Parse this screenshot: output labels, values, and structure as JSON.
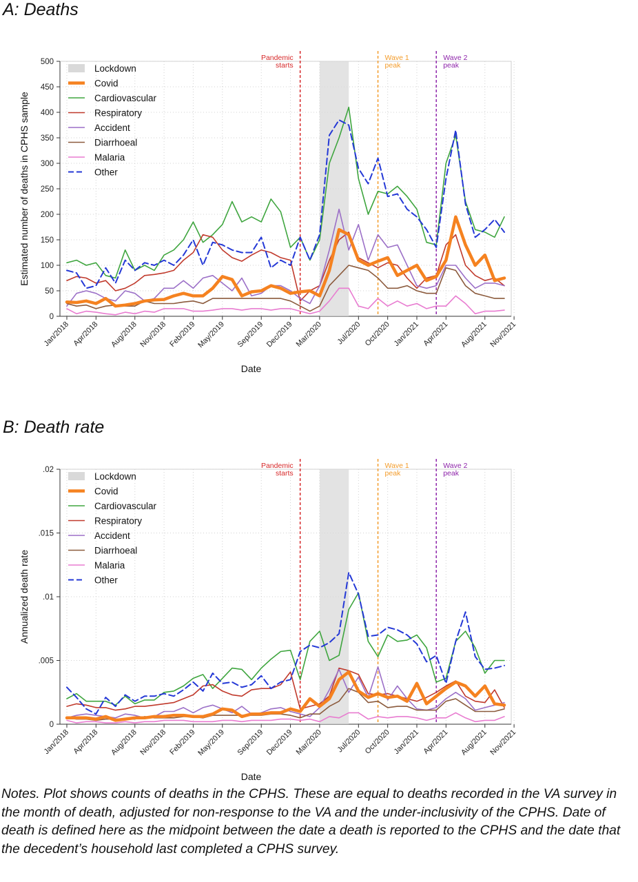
{
  "panels": {
    "a": {
      "title": "A: Deaths"
    },
    "b": {
      "title": "B: Death rate"
    }
  },
  "notes": "Notes.  Plot shows counts of deaths in the CPHS.  These are equal to deaths recorded in the VA survey in the month of death, adjusted for non-response to the VA and the under-inclusivity of the CPHS.  Date of death is defined here as the midpoint between the date a death is reported to the CPHS and the date that the decedent’s household last completed a CPHS survey.",
  "chart_data": [
    {
      "type": "line",
      "id": "a",
      "xlabel": "Date",
      "ylabel": "Estimated number of deaths in CPHS sample",
      "ylim": [
        0,
        500
      ],
      "yticks": [
        0,
        50,
        100,
        150,
        200,
        250,
        300,
        350,
        400,
        450,
        500
      ],
      "ytick_labels": [
        "0",
        "50",
        "100",
        "150",
        "200",
        "250",
        "300",
        "350",
        "400",
        "450",
        "500"
      ],
      "xticks": [
        "Jan/2018",
        "Apr/2018",
        "Aug/2018",
        "Nov/2018",
        "Feb/2019",
        "May/2019",
        "Sep/2019",
        "Dec/2019",
        "Mar/2020",
        "Jul/2020",
        "Oct/2020",
        "Jan/2021",
        "Apr/2021",
        "Aug/2021",
        "Nov/2021"
      ],
      "grid": true,
      "legend_position": "top-left",
      "lockdown": {
        "label": "Lockdown",
        "start": "Mar/2020",
        "end": "Jun/2020"
      },
      "events": [
        {
          "label": "Pandemic starts",
          "lines": [
            "Pandemic",
            "starts"
          ],
          "date": "Jan/2020",
          "color": "#d62728"
        },
        {
          "label": "Wave 1 peak",
          "lines": [
            "Wave 1",
            "peak"
          ],
          "date": "Sep/2020",
          "color": "#f39c2b"
        },
        {
          "label": "Wave 2 peak",
          "lines": [
            "Wave 2",
            "peak"
          ],
          "date": "Mar/2021",
          "color": "#8e24aa"
        }
      ],
      "x": [
        "Jan/2018",
        "Feb/2018",
        "Mar/2018",
        "Apr/2018",
        "May/2018",
        "Jun/2018",
        "Jul/2018",
        "Aug/2018",
        "Sep/2018",
        "Oct/2018",
        "Nov/2018",
        "Dec/2018",
        "Jan/2019",
        "Feb/2019",
        "Mar/2019",
        "Apr/2019",
        "May/2019",
        "Jun/2019",
        "Jul/2019",
        "Aug/2019",
        "Sep/2019",
        "Oct/2019",
        "Nov/2019",
        "Dec/2019",
        "Jan/2020",
        "Feb/2020",
        "Mar/2020",
        "Apr/2020",
        "May/2020",
        "Jun/2020",
        "Jul/2020",
        "Aug/2020",
        "Sep/2020",
        "Oct/2020",
        "Nov/2020",
        "Dec/2020",
        "Jan/2021",
        "Feb/2021",
        "Mar/2021",
        "Apr/2021",
        "May/2021",
        "Jun/2021",
        "Jul/2021",
        "Aug/2021",
        "Sep/2021",
        "Oct/2021"
      ],
      "series": [
        {
          "name": "Covid",
          "color": "#f58220",
          "width": 4.5,
          "dash": false,
          "values": [
            28,
            27,
            30,
            25,
            35,
            20,
            22,
            25,
            30,
            32,
            33,
            40,
            45,
            40,
            40,
            55,
            78,
            72,
            40,
            48,
            50,
            60,
            55,
            45,
            48,
            50,
            40,
            90,
            170,
            160,
            110,
            100,
            108,
            115,
            80,
            90,
            100,
            70,
            78,
            110,
            195,
            140,
            100,
            120,
            70,
            75
          ]
        },
        {
          "name": "Cardiovascular",
          "color": "#3ea53e",
          "width": 1.6,
          "dash": false,
          "values": [
            105,
            110,
            100,
            105,
            80,
            75,
            130,
            90,
            100,
            90,
            120,
            130,
            150,
            185,
            145,
            160,
            180,
            225,
            185,
            195,
            185,
            230,
            205,
            135,
            155,
            110,
            150,
            300,
            350,
            410,
            270,
            200,
            245,
            240,
            255,
            235,
            210,
            145,
            140,
            300,
            355,
            225,
            170,
            165,
            155,
            195
          ]
        },
        {
          "name": "Respiratory",
          "color": "#c0392b",
          "width": 1.6,
          "dash": false,
          "values": [
            70,
            78,
            75,
            65,
            70,
            50,
            55,
            65,
            80,
            82,
            85,
            90,
            110,
            125,
            160,
            155,
            130,
            115,
            108,
            120,
            130,
            125,
            115,
            110,
            30,
            50,
            60,
            110,
            150,
            165,
            115,
            105,
            95,
            105,
            100,
            75,
            55,
            75,
            80,
            140,
            160,
            100,
            80,
            70,
            75,
            60
          ]
        },
        {
          "name": "Accident",
          "color": "#9b6fc7",
          "width": 1.6,
          "dash": false,
          "values": [
            20,
            45,
            50,
            45,
            35,
            30,
            50,
            45,
            30,
            35,
            55,
            55,
            70,
            55,
            75,
            80,
            65,
            50,
            75,
            40,
            45,
            60,
            60,
            50,
            35,
            25,
            60,
            130,
            210,
            130,
            180,
            110,
            160,
            135,
            140,
            100,
            60,
            55,
            60,
            100,
            100,
            75,
            55,
            65,
            65,
            60
          ]
        },
        {
          "name": "Diarrhoeal",
          "color": "#8b5a3c",
          "width": 1.6,
          "dash": false,
          "values": [
            25,
            20,
            22,
            15,
            20,
            22,
            20,
            20,
            30,
            25,
            25,
            25,
            28,
            30,
            25,
            35,
            35,
            35,
            35,
            35,
            35,
            35,
            35,
            30,
            20,
            10,
            20,
            60,
            80,
            100,
            95,
            90,
            75,
            55,
            55,
            60,
            50,
            45,
            45,
            95,
            90,
            60,
            45,
            40,
            35,
            35
          ]
        },
        {
          "name": "Malaria",
          "color": "#e87bd0",
          "width": 1.6,
          "dash": false,
          "values": [
            15,
            5,
            10,
            8,
            5,
            3,
            8,
            5,
            10,
            8,
            15,
            15,
            15,
            10,
            10,
            12,
            15,
            15,
            12,
            15,
            15,
            12,
            15,
            15,
            10,
            5,
            10,
            30,
            55,
            55,
            20,
            15,
            35,
            20,
            30,
            20,
            25,
            15,
            20,
            20,
            40,
            25,
            5,
            10,
            10,
            12
          ]
        },
        {
          "name": "Other",
          "color": "#2438d6",
          "width": 2.0,
          "dash": true,
          "values": [
            90,
            85,
            55,
            60,
            95,
            65,
            110,
            90,
            105,
            100,
            110,
            100,
            120,
            150,
            100,
            145,
            140,
            130,
            125,
            125,
            155,
            95,
            110,
            100,
            155,
            110,
            160,
            355,
            385,
            375,
            290,
            260,
            310,
            235,
            240,
            210,
            195,
            170,
            135,
            270,
            365,
            220,
            155,
            170,
            190,
            165
          ]
        }
      ]
    },
    {
      "type": "line",
      "id": "b",
      "xlabel": "Date",
      "ylabel": "Annualized death rate",
      "ylim": [
        0,
        0.02
      ],
      "yticks": [
        0,
        0.005,
        0.01,
        0.015,
        0.02
      ],
      "ytick_labels": [
        "0",
        ".005",
        ".01",
        ".015",
        ".02"
      ],
      "xticks": [
        "Jan/2018",
        "Apr/2018",
        "Aug/2018",
        "Nov/2018",
        "Feb/2019",
        "May/2019",
        "Sep/2019",
        "Dec/2019",
        "Mar/2020",
        "Jul/2020",
        "Oct/2020",
        "Jan/2021",
        "Apr/2021",
        "Aug/2021",
        "Nov/2021"
      ],
      "grid": true,
      "legend_position": "top-left",
      "lockdown": {
        "label": "Lockdown",
        "start": "Mar/2020",
        "end": "Jun/2020"
      },
      "events": [
        {
          "label": "Pandemic starts",
          "lines": [
            "Pandemic",
            "starts"
          ],
          "date": "Jan/2020",
          "color": "#d62728"
        },
        {
          "label": "Wave 1 peak",
          "lines": [
            "Wave 1",
            "peak"
          ],
          "date": "Sep/2020",
          "color": "#f39c2b"
        },
        {
          "label": "Wave 2 peak",
          "lines": [
            "Wave 2",
            "peak"
          ],
          "date": "Mar/2021",
          "color": "#8e24aa"
        }
      ],
      "x": [
        "Jan/2018",
        "Feb/2018",
        "Mar/2018",
        "Apr/2018",
        "May/2018",
        "Jun/2018",
        "Jul/2018",
        "Aug/2018",
        "Sep/2018",
        "Oct/2018",
        "Nov/2018",
        "Dec/2018",
        "Jan/2019",
        "Feb/2019",
        "Mar/2019",
        "Apr/2019",
        "May/2019",
        "Jun/2019",
        "Jul/2019",
        "Aug/2019",
        "Sep/2019",
        "Oct/2019",
        "Nov/2019",
        "Dec/2019",
        "Jan/2020",
        "Feb/2020",
        "Mar/2020",
        "Apr/2020",
        "May/2020",
        "Jun/2020",
        "Jul/2020",
        "Aug/2020",
        "Sep/2020",
        "Oct/2020",
        "Nov/2020",
        "Dec/2020",
        "Jan/2021",
        "Feb/2021",
        "Mar/2021",
        "Apr/2021",
        "May/2021",
        "Jun/2021",
        "Jul/2021",
        "Aug/2021",
        "Sep/2021",
        "Oct/2021"
      ],
      "series": [
        {
          "name": "Covid",
          "color": "#f58220",
          "width": 4.5,
          "dash": false,
          "values": [
            0.0005,
            0.0005,
            0.0005,
            0.0004,
            0.0006,
            0.0003,
            0.0004,
            0.0005,
            0.0005,
            0.0006,
            0.0006,
            0.0007,
            0.0007,
            0.0006,
            0.0006,
            0.0008,
            0.0012,
            0.0011,
            0.0006,
            0.0008,
            0.0008,
            0.0009,
            0.0009,
            0.0012,
            0.001,
            0.002,
            0.0014,
            0.002,
            0.0035,
            0.0041,
            0.0026,
            0.0021,
            0.0024,
            0.0021,
            0.0022,
            0.0018,
            0.0032,
            0.0016,
            0.0022,
            0.0028,
            0.0033,
            0.003,
            0.0022,
            0.003,
            0.0016,
            0.0015
          ]
        },
        {
          "name": "Cardiovascular",
          "color": "#3ea53e",
          "width": 1.6,
          "dash": false,
          "values": [
            0.002,
            0.0024,
            0.0018,
            0.0018,
            0.0018,
            0.0015,
            0.0022,
            0.0016,
            0.0019,
            0.0019,
            0.0025,
            0.0026,
            0.003,
            0.0036,
            0.0039,
            0.0028,
            0.0036,
            0.0044,
            0.0043,
            0.0035,
            0.0044,
            0.0051,
            0.0057,
            0.0058,
            0.0035,
            0.0065,
            0.0073,
            0.005,
            0.0054,
            0.009,
            0.0103,
            0.0065,
            0.0053,
            0.007,
            0.0065,
            0.0066,
            0.007,
            0.006,
            0.0033,
            0.0036,
            0.0065,
            0.0073,
            0.006,
            0.004,
            0.005,
            0.005
          ]
        },
        {
          "name": "Respiratory",
          "color": "#c0392b",
          "width": 1.6,
          "dash": false,
          "values": [
            0.0014,
            0.0016,
            0.0015,
            0.0013,
            0.0013,
            0.0011,
            0.0012,
            0.0014,
            0.0014,
            0.0015,
            0.0016,
            0.0017,
            0.002,
            0.0023,
            0.003,
            0.0031,
            0.0026,
            0.0023,
            0.0022,
            0.0027,
            0.0028,
            0.0028,
            0.0031,
            0.0041,
            0.0012,
            0.0014,
            0.0016,
            0.0022,
            0.0044,
            0.0042,
            0.0039,
            0.0024,
            0.0023,
            0.0024,
            0.0022,
            0.002,
            0.0018,
            0.0021,
            0.0025,
            0.003,
            0.0034,
            0.0022,
            0.0018,
            0.0017,
            0.0027,
            0.0013
          ]
        },
        {
          "name": "Accident",
          "color": "#9b6fc7",
          "width": 1.6,
          "dash": false,
          "values": [
            0.0005,
            0.0007,
            0.0008,
            0.0007,
            0.0006,
            0.0005,
            0.0008,
            0.0007,
            0.0005,
            0.0006,
            0.001,
            0.001,
            0.0013,
            0.0009,
            0.0013,
            0.0015,
            0.0012,
            0.0009,
            0.0014,
            0.0008,
            0.0009,
            0.0012,
            0.0013,
            0.001,
            0.0008,
            0.0006,
            0.0013,
            0.0027,
            0.0043,
            0.0025,
            0.0037,
            0.0021,
            0.0045,
            0.0019,
            0.003,
            0.002,
            0.0012,
            0.0011,
            0.0013,
            0.002,
            0.0025,
            0.002,
            0.0011,
            0.0013,
            0.0015,
            0.0017
          ]
        },
        {
          "name": "Diarrhoeal",
          "color": "#8b5a3c",
          "width": 1.6,
          "dash": false,
          "values": [
            0.0005,
            0.0004,
            0.0004,
            0.0003,
            0.0004,
            0.0004,
            0.0004,
            0.0004,
            0.0006,
            0.0005,
            0.0005,
            0.0005,
            0.0006,
            0.0006,
            0.0005,
            0.0007,
            0.0007,
            0.0007,
            0.0007,
            0.0007,
            0.0007,
            0.0008,
            0.0008,
            0.0007,
            0.0005,
            0.0008,
            0.0008,
            0.0014,
            0.0018,
            0.0028,
            0.0025,
            0.0017,
            0.0018,
            0.0013,
            0.0014,
            0.0014,
            0.0011,
            0.0011,
            0.0011,
            0.0018,
            0.002,
            0.0015,
            0.001,
            0.001,
            0.001,
            0.0012
          ]
        },
        {
          "name": "Malaria",
          "color": "#e87bd0",
          "width": 1.6,
          "dash": false,
          "values": [
            0.0003,
            0.0001,
            0.0002,
            0.0002,
            0.0001,
            0.0001,
            0.0002,
            0.0001,
            0.0002,
            0.0002,
            0.0003,
            0.0003,
            0.0003,
            0.0002,
            0.0002,
            0.0002,
            0.0003,
            0.0003,
            0.0002,
            0.0003,
            0.0003,
            0.0003,
            0.0004,
            0.0004,
            0.0003,
            0.0004,
            0.0002,
            0.0006,
            0.0005,
            0.0009,
            0.0009,
            0.0004,
            0.0006,
            0.0005,
            0.0006,
            0.0006,
            0.0005,
            0.0003,
            0.0005,
            0.0005,
            0.0009,
            0.0005,
            0.0002,
            0.0003,
            0.0003,
            0.0006
          ]
        },
        {
          "name": "Other",
          "color": "#2438d6",
          "width": 2.0,
          "dash": true,
          "values": [
            0.0029,
            0.0021,
            0.0012,
            0.0008,
            0.0021,
            0.0014,
            0.0023,
            0.0018,
            0.0022,
            0.0022,
            0.0024,
            0.0022,
            0.0027,
            0.0033,
            0.0026,
            0.004,
            0.0032,
            0.0033,
            0.0029,
            0.0031,
            0.0038,
            0.0028,
            0.0033,
            0.0035,
            0.0057,
            0.0062,
            0.006,
            0.0064,
            0.0071,
            0.0119,
            0.0102,
            0.0069,
            0.007,
            0.0076,
            0.0074,
            0.007,
            0.0063,
            0.0049,
            0.0054,
            0.0032,
            0.0065,
            0.0088,
            0.0053,
            0.0043,
            0.0044,
            0.0046
          ]
        }
      ]
    }
  ]
}
